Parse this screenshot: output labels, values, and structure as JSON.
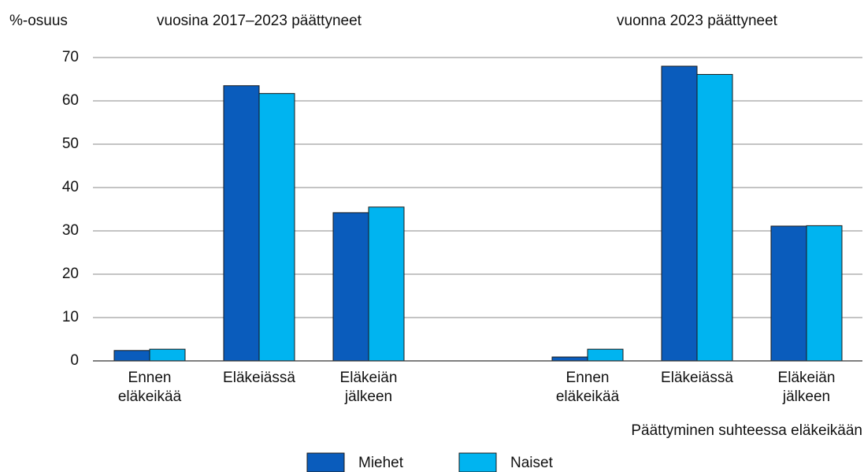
{
  "chart_data": {
    "type": "bar",
    "ylabel": "%-osuus",
    "xlabel": "Päättyminen suhteessa eläkeikään",
    "subtitles": [
      "vuosina 2017–2023 päättyneet",
      "vuonna 2023 päättyneet"
    ],
    "categories": [
      [
        "Ennen",
        "eläkeikää"
      ],
      [
        "Eläkeiässä"
      ],
      [
        "Eläkeiän",
        "jälkeen"
      ],
      null,
      [
        "Ennen",
        "eläkeikää"
      ],
      [
        "Eläkeiässä"
      ],
      [
        "Eläkeiän",
        "jälkeen"
      ]
    ],
    "series": [
      {
        "name": "Miehet",
        "color": "#0a5cbc",
        "values": [
          2.4,
          63.5,
          34.2,
          null,
          0.9,
          68.0,
          31.1
        ]
      },
      {
        "name": "Naiset",
        "color": "#00b4f0",
        "values": [
          2.7,
          61.7,
          35.5,
          null,
          2.7,
          66.1,
          31.2
        ]
      }
    ],
    "ylim": [
      0,
      70
    ],
    "yticks": [
      0,
      10,
      20,
      30,
      40,
      50,
      60,
      70
    ],
    "grid": true
  }
}
